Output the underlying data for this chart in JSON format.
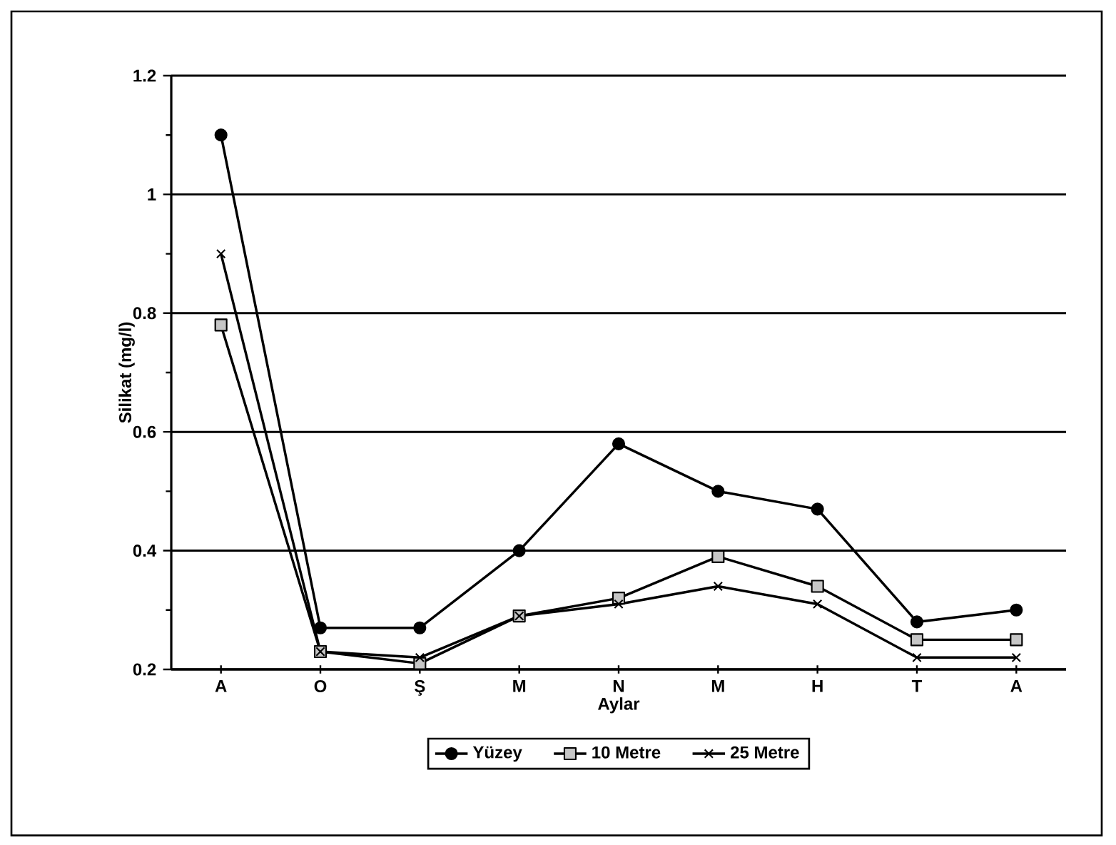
{
  "chart_data": {
    "type": "line",
    "xlabel": "Aylar",
    "ylabel": "Silikat (mg/l)",
    "categories": [
      "A",
      "O",
      "Ş",
      "M",
      "N",
      "M",
      "H",
      "T",
      "A"
    ],
    "series": [
      {
        "name": "Yüzey",
        "color": "#000000",
        "marker": "circle",
        "values": [
          1.1,
          0.27,
          0.27,
          0.4,
          0.58,
          0.5,
          0.47,
          0.28,
          0.3
        ]
      },
      {
        "name": "10 Metre",
        "color": "#000000",
        "marker": "square",
        "values": [
          0.78,
          0.23,
          0.21,
          0.29,
          0.32,
          0.39,
          0.34,
          0.25,
          0.25
        ]
      },
      {
        "name": "25 Metre",
        "color": "#000000",
        "marker": "cross",
        "values": [
          0.9,
          0.23,
          0.22,
          0.29,
          0.31,
          0.34,
          0.31,
          0.22,
          0.22
        ]
      }
    ],
    "ylim": [
      0.2,
      1.2
    ],
    "yticks": [
      {
        "value": 0.2,
        "label": "0.2"
      },
      {
        "value": 0.4,
        "label": "0.4"
      },
      {
        "value": 0.6,
        "label": "0.6"
      },
      {
        "value": 0.8,
        "label": "0.8"
      },
      1,
      {
        "value": 1.2,
        "label": "1.2"
      }
    ],
    "grid": "y",
    "legend": "bottom",
    "line_style": "solid"
  }
}
